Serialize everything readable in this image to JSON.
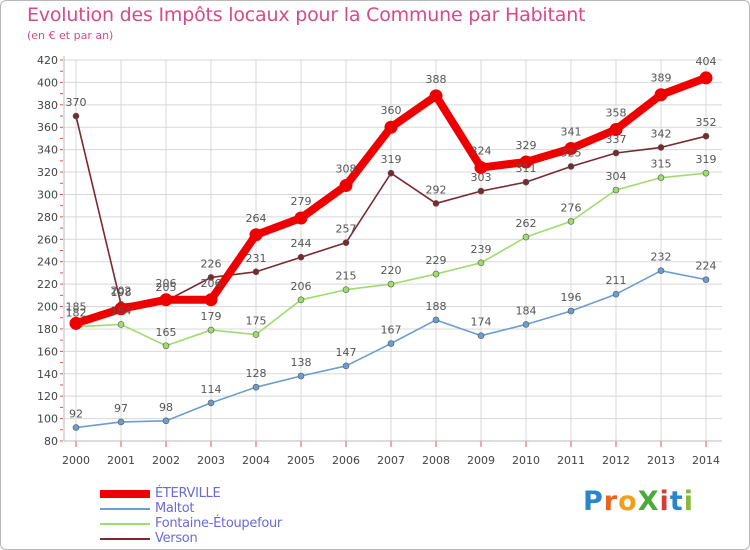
{
  "title": "Evolution des Impôts locaux pour la Commune par Habitant",
  "subtitle": "(en € et par an)",
  "brand": {
    "text": "ProXiti",
    "letters": [
      "P",
      "r",
      "o",
      "X",
      "i",
      "t",
      "i"
    ],
    "colors": [
      "#2a86c8",
      "#e8641e",
      "#f0a020",
      "#4aaa3a",
      "#d43c3c",
      "#2a86c8",
      "#8ab83c"
    ]
  },
  "chart_data": {
    "type": "line",
    "title": "Evolution des Impôts locaux pour la Commune par Habitant",
    "subtitle": "(en € et par an)",
    "xlabel": "",
    "ylabel": "",
    "x": [
      "2000",
      "2001",
      "2002",
      "2003",
      "2004",
      "2005",
      "2006",
      "2007",
      "2008",
      "2009",
      "2010",
      "2011",
      "2012",
      "2013",
      "2014"
    ],
    "ylim": [
      80,
      420
    ],
    "yticks": [
      80,
      100,
      120,
      140,
      160,
      180,
      200,
      220,
      240,
      260,
      280,
      300,
      320,
      340,
      360,
      380,
      400,
      420
    ],
    "grid": true,
    "legend_position": "bottom-left",
    "series": [
      {
        "name": "ÉTERVILLE",
        "color": "#ee0000",
        "emphasis": true,
        "values": [
          185,
          198,
          206,
          206,
          264,
          279,
          308,
          360,
          388,
          324,
          329,
          341,
          358,
          389,
          404
        ]
      },
      {
        "name": "Maltot",
        "color": "#6a9ed2",
        "emphasis": false,
        "values": [
          92,
          97,
          98,
          114,
          128,
          138,
          147,
          167,
          188,
          174,
          184,
          196,
          211,
          232,
          224
        ]
      },
      {
        "name": "Fontaine-Étoupefour",
        "color": "#9fdc6e",
        "emphasis": false,
        "values": [
          182,
          184,
          165,
          179,
          175,
          206,
          215,
          220,
          229,
          239,
          262,
          276,
          304,
          315,
          319
        ]
      },
      {
        "name": "Verson",
        "color": "#7a2a2e",
        "emphasis": false,
        "values": [
          370,
          202,
          205,
          226,
          231,
          244,
          257,
          319,
          292,
          303,
          311,
          325,
          337,
          342,
          352
        ]
      }
    ]
  }
}
